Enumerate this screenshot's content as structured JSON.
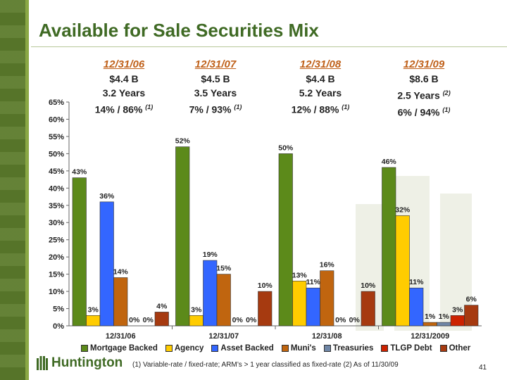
{
  "title": "Available for Sale Securities Mix",
  "columns": [
    {
      "date": "12/31/06",
      "amount": "$4.4 B",
      "duration": "3.2 Years",
      "mix": "14% / 86%",
      "mix_note": "(1)"
    },
    {
      "date": "12/31/07",
      "amount": "$4.5 B",
      "duration": "3.5 Years",
      "mix": "7% / 93%",
      "mix_note": "(1)"
    },
    {
      "date": "12/31/08",
      "amount": "$4.4 B",
      "duration": "5.2 Years",
      "mix": "12% / 88%",
      "mix_note": "(1)"
    },
    {
      "date": "12/31/09",
      "amount": "$8.6 B",
      "duration": "2.5 Years",
      "duration_note": "(2)",
      "mix": "6% / 94%",
      "mix_note": "(1)"
    }
  ],
  "chart_data": {
    "type": "bar",
    "categories": [
      "12/31/06",
      "12/31/07",
      "12/31/08",
      "12/31/2009"
    ],
    "series": [
      {
        "name": "Mortgage Backed",
        "color": "#5c8a1a",
        "values": [
          43,
          52,
          50,
          46
        ],
        "labels": [
          "43%",
          "52%",
          "50%",
          "46%"
        ]
      },
      {
        "name": "Agency",
        "color": "#ffcc00",
        "values": [
          3,
          3,
          13,
          32
        ],
        "labels": [
          "3%",
          "3%",
          "13%",
          "32%"
        ]
      },
      {
        "name": "Asset Backed",
        "color": "#3366ff",
        "values": [
          36,
          19,
          11,
          11
        ],
        "labels": [
          "36%",
          "19%",
          "11%",
          "11%"
        ]
      },
      {
        "name": "Muni's",
        "color": "#c0650f",
        "values": [
          14,
          15,
          16,
          1
        ],
        "labels": [
          "14%",
          "15%",
          "16%",
          "1%"
        ]
      },
      {
        "name": "Treasuries",
        "color": "#6f86a6",
        "values": [
          0,
          0,
          0,
          1
        ],
        "labels": [
          "0%",
          "0%",
          "0%",
          "1%"
        ]
      },
      {
        "name": "TLGP Debt",
        "color": "#cc2200",
        "values": [
          0,
          0,
          0,
          3
        ],
        "labels": [
          "0%",
          "0%",
          "0%",
          "3%"
        ]
      },
      {
        "name": "Other",
        "color": "#a63a10",
        "values": [
          4,
          10,
          10,
          6
        ],
        "labels": [
          "4%",
          "10%",
          "10%",
          "6%"
        ]
      }
    ],
    "yticks": [
      "0%",
      "5%",
      "10%",
      "15%",
      "20%",
      "25%",
      "30%",
      "35%",
      "40%",
      "45%",
      "50%",
      "55%",
      "60%",
      "65%"
    ],
    "ylim": [
      0,
      65
    ],
    "legend": "bottom",
    "grid": false
  },
  "logo_text": "Huntington",
  "footnote": "(1)  Variable-rate / fixed-rate;  ARM’s > 1 year classified as fixed-rate    (2)  As of 11/30/09",
  "page_number": "41"
}
